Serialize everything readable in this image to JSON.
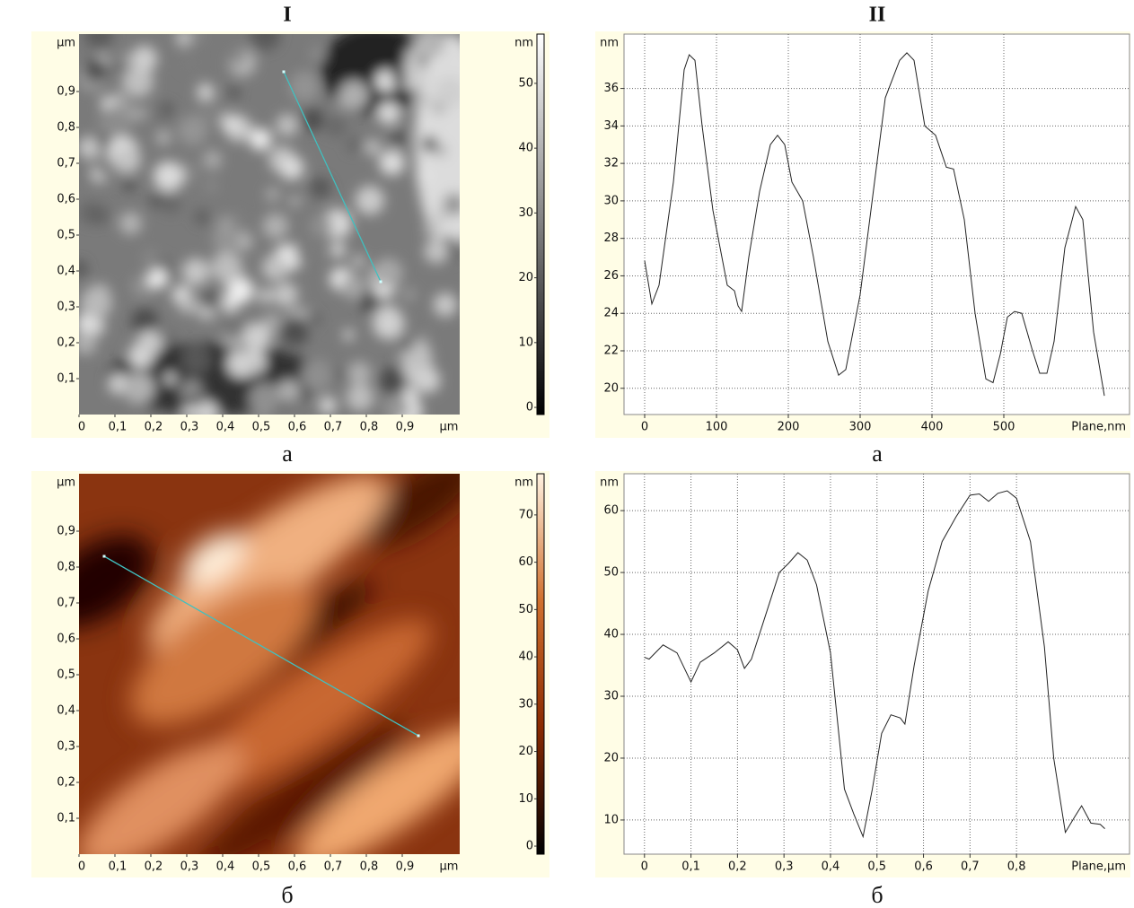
{
  "column_titles": [
    "I",
    "II"
  ],
  "chart_data": [
    {
      "type": "image",
      "caption": "а",
      "x_unit": "µm",
      "y_unit": "µm",
      "xlim": [
        0,
        1.06
      ],
      "ylim": [
        0,
        1.06
      ],
      "xticks": [
        0,
        {
          "value": 0.1,
          "label": "0,1"
        },
        {
          "value": 0.2,
          "label": "0,2"
        },
        {
          "value": 0.3,
          "label": "0,3"
        },
        {
          "value": 0.4,
          "label": "0,4"
        },
        {
          "value": 0.5,
          "label": "0,5"
        },
        {
          "value": 0.6,
          "label": "0,6"
        },
        {
          "value": 0.7,
          "label": "0,7"
        },
        {
          "value": 0.8,
          "label": "0,8"
        },
        {
          "value": 0.9,
          "label": "0,9"
        }
      ],
      "yticks": [
        {
          "value": 0.1,
          "label": "0,1"
        },
        {
          "value": 0.2,
          "label": "0,2"
        },
        {
          "value": 0.3,
          "label": "0,3"
        },
        {
          "value": 0.4,
          "label": "0,4"
        },
        {
          "value": 0.5,
          "label": "0,5"
        },
        {
          "value": 0.6,
          "label": "0,6"
        },
        {
          "value": 0.7,
          "label": "0,7"
        },
        {
          "value": 0.8,
          "label": "0,8"
        },
        {
          "value": 0.9,
          "label": "0,9"
        }
      ],
      "colorbar": {
        "unit": "nm",
        "lim": [
          -1.1,
          57.6
        ],
        "ticks": [
          0,
          10,
          20,
          30,
          40,
          50
        ],
        "colors": [
          "#000000",
          "#808080",
          "#ffffff"
        ]
      },
      "profile": {
        "color": "#40c0c0",
        "x": [
          0.57,
          0.84
        ],
        "y": [
          0.955,
          0.37
        ]
      }
    },
    {
      "type": "line",
      "caption": "а",
      "y_unit": "nm",
      "x_label": "Plane,nm",
      "grid": true,
      "xlim": [
        -28.75,
        675
      ],
      "ylim": [
        18.6,
        38.9
      ],
      "xticks": [
        0,
        100,
        200,
        300,
        400,
        500
      ],
      "yticks": [
        20,
        22,
        24,
        26,
        28,
        30,
        32,
        34,
        36
      ],
      "x": [
        0,
        10,
        20,
        40,
        55,
        62,
        70,
        80,
        95,
        115,
        125,
        130,
        135,
        145,
        160,
        175,
        185,
        195,
        205,
        220,
        235,
        255,
        270,
        280,
        300,
        320,
        335,
        355,
        365,
        375,
        390,
        405,
        420,
        430,
        445,
        460,
        475,
        485,
        495,
        505,
        515,
        525,
        540,
        550,
        560,
        570,
        585,
        600,
        610,
        625,
        640
      ],
      "series": [
        {
          "color": "#222222",
          "values": [
            26.8,
            24.5,
            25.5,
            31,
            37,
            37.8,
            37.5,
            34,
            29.5,
            25.5,
            25.2,
            24.4,
            24.1,
            27,
            30.5,
            33,
            33.5,
            33,
            31,
            30,
            27,
            22.5,
            20.7,
            21,
            25,
            31,
            35.5,
            37.5,
            37.9,
            37.5,
            34,
            33.5,
            31.8,
            31.7,
            29,
            24,
            20.5,
            20.3,
            21.8,
            23.8,
            24.1,
            24,
            22,
            20.8,
            20.8,
            22.5,
            27.5,
            29.7,
            29,
            23,
            19.6
          ]
        }
      ]
    },
    {
      "type": "image",
      "caption": "б",
      "x_unit": "µm",
      "y_unit": "µm",
      "xlim": [
        0,
        1.06
      ],
      "ylim": [
        0,
        1.06
      ],
      "xticks": [
        0,
        {
          "value": 0.1,
          "label": "0,1"
        },
        {
          "value": 0.2,
          "label": "0,2"
        },
        {
          "value": 0.3,
          "label": "0,3"
        },
        {
          "value": 0.4,
          "label": "0,4"
        },
        {
          "value": 0.5,
          "label": "0,5"
        },
        {
          "value": 0.6,
          "label": "0,6"
        },
        {
          "value": 0.7,
          "label": "0,7"
        },
        {
          "value": 0.8,
          "label": "0,8"
        },
        {
          "value": 0.9,
          "label": "0,9"
        }
      ],
      "yticks": [
        {
          "value": 0.1,
          "label": "0,1"
        },
        {
          "value": 0.2,
          "label": "0,2"
        },
        {
          "value": 0.3,
          "label": "0,3"
        },
        {
          "value": 0.4,
          "label": "0,4"
        },
        {
          "value": 0.5,
          "label": "0,5"
        },
        {
          "value": 0.6,
          "label": "0,6"
        },
        {
          "value": 0.7,
          "label": "0,7"
        },
        {
          "value": 0.8,
          "label": "0,8"
        },
        {
          "value": 0.9,
          "label": "0,9"
        }
      ],
      "colorbar": {
        "unit": "nm",
        "lim": [
          -1.7,
          78.7
        ],
        "ticks": [
          0,
          10,
          20,
          30,
          40,
          50,
          60,
          70
        ],
        "colors": [
          "#000000",
          "#8a2a00",
          "#d0702e",
          "#fff2e0"
        ]
      },
      "profile": {
        "color": "#40c0c0",
        "x": [
          0.07,
          0.945
        ],
        "y": [
          0.83,
          0.33
        ]
      }
    },
    {
      "type": "line",
      "caption": "б",
      "y_unit": "nm",
      "x_label": "Plane,µm",
      "grid": true,
      "xlim": [
        -0.044,
        1.043
      ],
      "ylim": [
        4.48,
        65.96
      ],
      "xticks": [
        0,
        {
          "value": 0.1,
          "label": "0,1"
        },
        {
          "value": 0.2,
          "label": "0,2"
        },
        {
          "value": 0.3,
          "label": "0,3"
        },
        {
          "value": 0.4,
          "label": "0,4"
        },
        {
          "value": 0.5,
          "label": "0,5"
        },
        {
          "value": 0.6,
          "label": "0,6"
        },
        {
          "value": 0.7,
          "label": "0,7"
        },
        {
          "value": 0.8,
          "label": "0,8"
        }
      ],
      "yticks": [
        10,
        20,
        30,
        40,
        50,
        60
      ],
      "x": [
        0,
        0.01,
        0.04,
        0.07,
        0.1,
        0.12,
        0.15,
        0.18,
        0.2,
        0.215,
        0.23,
        0.26,
        0.29,
        0.31,
        0.33,
        0.35,
        0.37,
        0.4,
        0.43,
        0.45,
        0.47,
        0.49,
        0.51,
        0.53,
        0.55,
        0.56,
        0.58,
        0.61,
        0.64,
        0.67,
        0.7,
        0.72,
        0.74,
        0.76,
        0.78,
        0.8,
        0.83,
        0.86,
        0.88,
        0.905,
        0.925,
        0.94,
        0.96,
        0.98,
        0.99
      ],
      "series": [
        {
          "color": "#222222",
          "values": [
            36.3,
            36,
            38.3,
            37,
            32.3,
            35.5,
            37,
            38.8,
            37.5,
            34.5,
            36,
            43,
            50,
            51.5,
            53.2,
            52,
            48,
            37,
            15,
            11,
            7.3,
            15,
            24,
            27,
            26.5,
            25.5,
            35,
            47,
            55,
            59,
            62.5,
            62.7,
            61.5,
            62.8,
            63.2,
            62,
            55,
            38,
            20,
            8,
            10.5,
            12.3,
            9.5,
            9.3,
            8.6
          ]
        }
      ]
    }
  ]
}
